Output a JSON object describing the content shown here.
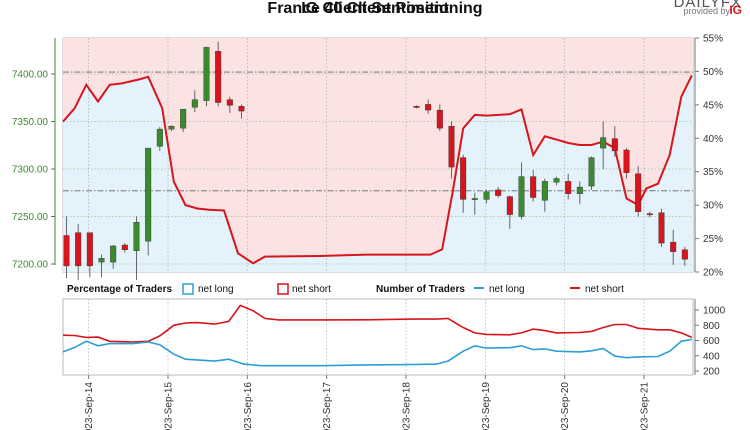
{
  "header": {
    "title": "France 40 Client Positioning",
    "subtitle": "IG Client Sentiment",
    "brand_top": "DAILYFX",
    "provided_by": "provided by",
    "provider": "IG"
  },
  "legend": {
    "pct_title": "Percentage of Traders",
    "pct_long": "net long",
    "pct_short": "net short",
    "num_title": "Number of Traders",
    "num_long": "net long",
    "num_short": "net short"
  },
  "colors": {
    "net_long": "#2a9fd6",
    "net_short": "#d8141c",
    "long_fill": "#e3f2fb",
    "short_fill": "#fbe3e3",
    "bull_candle": "#3c8a2e",
    "bear_candle": "#d8141c",
    "price_axis": "#3c8a2e"
  },
  "chart_data": [
    {
      "type": "candlestick",
      "title": "IG Client Sentiment",
      "ylabel": "",
      "ylim": [
        7190,
        7440
      ],
      "y2lim": [
        20,
        55
      ],
      "price_ticks": [
        "7200.00",
        "7250.00",
        "7300.00",
        "7350.00",
        "7400.00"
      ],
      "pct_ticks": [
        "20%",
        "25%",
        "30%",
        "35%",
        "40%",
        "45%",
        "50%",
        "55%"
      ],
      "reference_lines": [
        7402,
        7277
      ],
      "candles": [
        {
          "t": 0.3,
          "o": 7230,
          "h": 7250,
          "l": 7185,
          "c": 7198
        },
        {
          "t": 1.3,
          "o": 7233,
          "h": 7242,
          "l": 7183,
          "c": 7198
        },
        {
          "t": 2.3,
          "o": 7233,
          "h": 7233,
          "l": 7186,
          "c": 7198
        },
        {
          "t": 3.3,
          "o": 7202,
          "h": 7210,
          "l": 7186,
          "c": 7206
        },
        {
          "t": 4.3,
          "o": 7202,
          "h": 7220,
          "l": 7195,
          "c": 7219
        },
        {
          "t": 5.3,
          "o": 7220,
          "h": 7222,
          "l": 7212,
          "c": 7215
        },
        {
          "t": 6.3,
          "o": 7214,
          "h": 7250,
          "l": 7183,
          "c": 7244
        },
        {
          "t": 7.3,
          "o": 7224,
          "h": 7322,
          "l": 7209,
          "c": 7322
        },
        {
          "t": 8.3,
          "o": 7324,
          "h": 7344,
          "l": 7319,
          "c": 7342
        },
        {
          "t": 9.3,
          "o": 7342,
          "h": 7346,
          "l": 7340,
          "c": 7345
        },
        {
          "t": 10.3,
          "o": 7343,
          "h": 7363,
          "l": 7339,
          "c": 7363
        },
        {
          "t": 11.3,
          "o": 7365,
          "h": 7383,
          "l": 7360,
          "c": 7373
        },
        {
          "t": 12.3,
          "o": 7372,
          "h": 7429,
          "l": 7366,
          "c": 7428
        },
        {
          "t": 13.3,
          "o": 7424,
          "h": 7434,
          "l": 7366,
          "c": 7370
        },
        {
          "t": 14.3,
          "o": 7373,
          "h": 7376,
          "l": 7359,
          "c": 7367
        },
        {
          "t": 15.3,
          "o": 7366,
          "h": 7368,
          "l": 7353,
          "c": 7361
        },
        {
          "t": 30.3,
          "o": 7366,
          "h": 7367,
          "l": 7364,
          "c": 7365
        },
        {
          "t": 31.3,
          "o": 7368,
          "h": 7373,
          "l": 7358,
          "c": 7362
        },
        {
          "t": 32.3,
          "o": 7362,
          "h": 7368,
          "l": 7340,
          "c": 7343
        },
        {
          "t": 33.3,
          "o": 7345,
          "h": 7350,
          "l": 7290,
          "c": 7302
        },
        {
          "t": 34.3,
          "o": 7312,
          "h": 7315,
          "l": 7254,
          "c": 7268
        },
        {
          "t": 35.3,
          "o": 7268,
          "h": 7275,
          "l": 7252,
          "c": 7269
        },
        {
          "t": 36.3,
          "o": 7268,
          "h": 7278,
          "l": 7264,
          "c": 7276
        },
        {
          "t": 37.3,
          "o": 7278,
          "h": 7281,
          "l": 7270,
          "c": 7272
        },
        {
          "t": 38.3,
          "o": 7271,
          "h": 7272,
          "l": 7237,
          "c": 7252
        },
        {
          "t": 39.3,
          "o": 7250,
          "h": 7307,
          "l": 7247,
          "c": 7292
        },
        {
          "t": 40.3,
          "o": 7292,
          "h": 7299,
          "l": 7266,
          "c": 7270
        },
        {
          "t": 41.3,
          "o": 7267,
          "h": 7290,
          "l": 7255,
          "c": 7287
        },
        {
          "t": 42.3,
          "o": 7286,
          "h": 7292,
          "l": 7283,
          "c": 7290
        },
        {
          "t": 43.3,
          "o": 7287,
          "h": 7295,
          "l": 7268,
          "c": 7274
        },
        {
          "t": 44.3,
          "o": 7274,
          "h": 7287,
          "l": 7263,
          "c": 7281
        },
        {
          "t": 45.3,
          "o": 7282,
          "h": 7313,
          "l": 7278,
          "c": 7312
        },
        {
          "t": 46.3,
          "o": 7322,
          "h": 7350,
          "l": 7300,
          "c": 7333
        },
        {
          "t": 47.3,
          "o": 7332,
          "h": 7345,
          "l": 7313,
          "c": 7319
        },
        {
          "t": 48.3,
          "o": 7320,
          "h": 7322,
          "l": 7290,
          "c": 7296
        },
        {
          "t": 49.3,
          "o": 7295,
          "h": 7303,
          "l": 7250,
          "c": 7255
        },
        {
          "t": 50.3,
          "o": 7253,
          "h": 7255,
          "l": 7249,
          "c": 7252
        },
        {
          "t": 51.3,
          "o": 7254,
          "h": 7258,
          "l": 7218,
          "c": 7222
        },
        {
          "t": 52.3,
          "o": 7223,
          "h": 7236,
          "l": 7199,
          "c": 7213
        },
        {
          "t": 53.3,
          "o": 7215,
          "h": 7218,
          "l": 7198,
          "c": 7205
        }
      ],
      "pct_long_series": [
        {
          "t": 0,
          "v": 42.5
        },
        {
          "t": 1,
          "v": 44.5
        },
        {
          "t": 2,
          "v": 48.0
        },
        {
          "t": 3,
          "v": 45.5
        },
        {
          "t": 4,
          "v": 48.0
        },
        {
          "t": 5,
          "v": 48.2
        },
        {
          "t": 6.5,
          "v": 48.8
        },
        {
          "t": 7.3,
          "v": 49.2
        },
        {
          "t": 8.5,
          "v": 44.5
        },
        {
          "t": 9.5,
          "v": 33.5
        },
        {
          "t": 10.5,
          "v": 30.0
        },
        {
          "t": 11.5,
          "v": 29.5
        },
        {
          "t": 12.5,
          "v": 29.3
        },
        {
          "t": 13.8,
          "v": 29.2
        },
        {
          "t": 15.0,
          "v": 22.8
        },
        {
          "t": 16.3,
          "v": 21.3
        },
        {
          "t": 17.3,
          "v": 22.3
        },
        {
          "t": 22,
          "v": 22.4
        },
        {
          "t": 26,
          "v": 22.6
        },
        {
          "t": 30,
          "v": 22.6
        },
        {
          "t": 31.5,
          "v": 22.6
        },
        {
          "t": 32.5,
          "v": 23.4
        },
        {
          "t": 33.4,
          "v": 32.0
        },
        {
          "t": 34.3,
          "v": 41.5
        },
        {
          "t": 35.3,
          "v": 43.5
        },
        {
          "t": 36.3,
          "v": 43.4
        },
        {
          "t": 38.3,
          "v": 43.6
        },
        {
          "t": 39.3,
          "v": 44.3
        },
        {
          "t": 40.3,
          "v": 37.5
        },
        {
          "t": 41.3,
          "v": 40.3
        },
        {
          "t": 42.3,
          "v": 39.8
        },
        {
          "t": 43.3,
          "v": 39.3
        },
        {
          "t": 44.3,
          "v": 39.0
        },
        {
          "t": 45.3,
          "v": 39.0
        },
        {
          "t": 46.3,
          "v": 39.5
        },
        {
          "t": 47.3,
          "v": 38.5
        },
        {
          "t": 48.3,
          "v": 31.0
        },
        {
          "t": 49.3,
          "v": 30.0
        },
        {
          "t": 50.0,
          "v": 32.5
        },
        {
          "t": 51.0,
          "v": 33.2
        },
        {
          "t": 52.0,
          "v": 37.5
        },
        {
          "t": 53.0,
          "v": 46.2
        },
        {
          "t": 53.9,
          "v": 49.4
        }
      ],
      "x_dates": [
        {
          "t": 2.2,
          "label": "2023-Sep-14"
        },
        {
          "t": 9.0,
          "label": "2023-Sep-15"
        },
        {
          "t": 15.8,
          "label": "2023-Sep-16"
        },
        {
          "t": 22.6,
          "label": "2023-Sep-17"
        },
        {
          "t": 29.4,
          "label": "2023-Sep-18"
        },
        {
          "t": 36.2,
          "label": "2023-Sep-19"
        },
        {
          "t": 43.0,
          "label": "2023-Sep-20"
        },
        {
          "t": 49.8,
          "label": "2023-Sep-21"
        }
      ],
      "xlim": [
        0,
        54
      ]
    },
    {
      "type": "line",
      "title": "Number of Traders",
      "ylim": [
        200,
        1100
      ],
      "y_ticks": [
        "200",
        "400",
        "600",
        "800",
        "1000"
      ],
      "series": [
        {
          "name": "net long",
          "points": [
            {
              "t": 0,
              "v": 450
            },
            {
              "t": 1,
              "v": 510
            },
            {
              "t": 2,
              "v": 590
            },
            {
              "t": 3,
              "v": 530
            },
            {
              "t": 4,
              "v": 560
            },
            {
              "t": 6,
              "v": 560
            },
            {
              "t": 7.3,
              "v": 580
            },
            {
              "t": 8.3,
              "v": 545
            },
            {
              "t": 9.5,
              "v": 420
            },
            {
              "t": 10.5,
              "v": 355
            },
            {
              "t": 11.5,
              "v": 345
            },
            {
              "t": 13,
              "v": 330
            },
            {
              "t": 14.2,
              "v": 355
            },
            {
              "t": 15.5,
              "v": 290
            },
            {
              "t": 17,
              "v": 270
            },
            {
              "t": 22,
              "v": 270
            },
            {
              "t": 26,
              "v": 280
            },
            {
              "t": 30,
              "v": 285
            },
            {
              "t": 32,
              "v": 290
            },
            {
              "t": 33,
              "v": 330
            },
            {
              "t": 34.3,
              "v": 460
            },
            {
              "t": 35.3,
              "v": 530
            },
            {
              "t": 36.3,
              "v": 500
            },
            {
              "t": 38.3,
              "v": 505
            },
            {
              "t": 39.3,
              "v": 530
            },
            {
              "t": 40.3,
              "v": 480
            },
            {
              "t": 41.3,
              "v": 490
            },
            {
              "t": 42.3,
              "v": 460
            },
            {
              "t": 44.3,
              "v": 450
            },
            {
              "t": 45.3,
              "v": 465
            },
            {
              "t": 46.3,
              "v": 495
            },
            {
              "t": 47.3,
              "v": 395
            },
            {
              "t": 48.3,
              "v": 375
            },
            {
              "t": 49.3,
              "v": 385
            },
            {
              "t": 51,
              "v": 390
            },
            {
              "t": 52,
              "v": 460
            },
            {
              "t": 53,
              "v": 590
            },
            {
              "t": 53.9,
              "v": 615
            }
          ]
        },
        {
          "name": "net short",
          "points": [
            {
              "t": 0,
              "v": 670
            },
            {
              "t": 1,
              "v": 665
            },
            {
              "t": 2,
              "v": 640
            },
            {
              "t": 3,
              "v": 645
            },
            {
              "t": 4,
              "v": 590
            },
            {
              "t": 6,
              "v": 580
            },
            {
              "t": 7.3,
              "v": 590
            },
            {
              "t": 8.3,
              "v": 660
            },
            {
              "t": 9.5,
              "v": 800
            },
            {
              "t": 10.5,
              "v": 830
            },
            {
              "t": 11.5,
              "v": 835
            },
            {
              "t": 13,
              "v": 815
            },
            {
              "t": 14.2,
              "v": 850
            },
            {
              "t": 15.2,
              "v": 1060
            },
            {
              "t": 16.3,
              "v": 990
            },
            {
              "t": 17.3,
              "v": 890
            },
            {
              "t": 18.5,
              "v": 870
            },
            {
              "t": 22,
              "v": 870
            },
            {
              "t": 26,
              "v": 872
            },
            {
              "t": 30,
              "v": 880
            },
            {
              "t": 32,
              "v": 880
            },
            {
              "t": 33,
              "v": 890
            },
            {
              "t": 34.3,
              "v": 770
            },
            {
              "t": 35.3,
              "v": 700
            },
            {
              "t": 36.3,
              "v": 680
            },
            {
              "t": 38.3,
              "v": 675
            },
            {
              "t": 39.3,
              "v": 700
            },
            {
              "t": 40.3,
              "v": 750
            },
            {
              "t": 41.3,
              "v": 730
            },
            {
              "t": 42.3,
              "v": 700
            },
            {
              "t": 44.3,
              "v": 705
            },
            {
              "t": 45.3,
              "v": 720
            },
            {
              "t": 46.3,
              "v": 770
            },
            {
              "t": 47.3,
              "v": 810
            },
            {
              "t": 48.3,
              "v": 810
            },
            {
              "t": 49.3,
              "v": 760
            },
            {
              "t": 51,
              "v": 740
            },
            {
              "t": 52,
              "v": 740
            },
            {
              "t": 53,
              "v": 700
            },
            {
              "t": 53.9,
              "v": 640
            }
          ]
        }
      ]
    }
  ]
}
